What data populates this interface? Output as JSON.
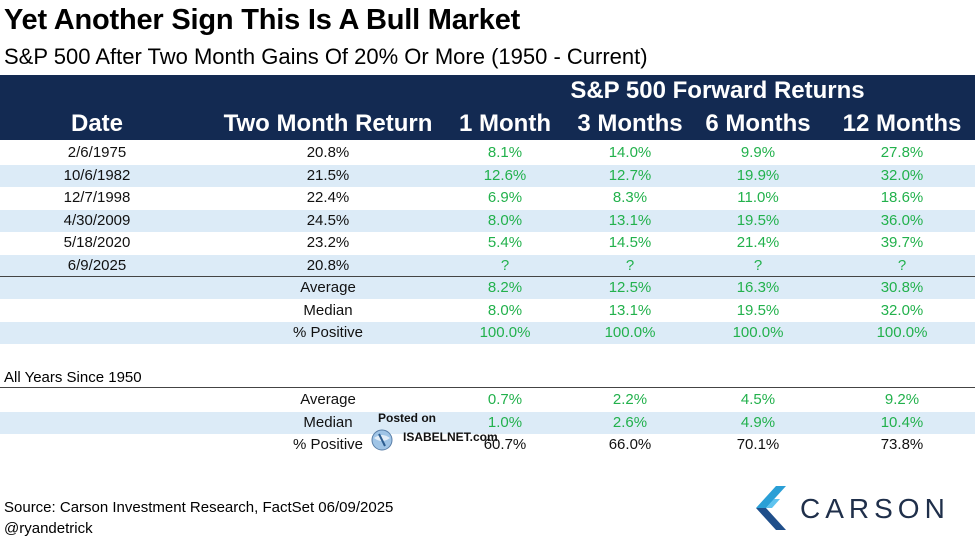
{
  "title": "Yet Another Sign This Is A Bull Market",
  "subtitle": "S&P 500 After Two Month Gains Of 20% Or More (1950 - Current)",
  "chart_data": {
    "type": "table",
    "group_header": "S&P 500 Forward Returns",
    "columns": [
      "Date",
      "Two Month Return",
      "1 Month",
      "3 Months",
      "6 Months",
      "12 Months"
    ],
    "rows": [
      [
        "2/6/1975",
        "20.8%",
        "8.1%",
        "14.0%",
        "9.9%",
        "27.8%"
      ],
      [
        "10/6/1982",
        "21.5%",
        "12.6%",
        "12.7%",
        "19.9%",
        "32.0%"
      ],
      [
        "12/7/1998",
        "22.4%",
        "6.9%",
        "8.3%",
        "11.0%",
        "18.6%"
      ],
      [
        "4/30/2009",
        "24.5%",
        "8.0%",
        "13.1%",
        "19.5%",
        "36.0%"
      ],
      [
        "5/18/2020",
        "23.2%",
        "5.4%",
        "14.5%",
        "21.4%",
        "39.7%"
      ],
      [
        "6/9/2025",
        "20.8%",
        "?",
        "?",
        "?",
        "?"
      ]
    ],
    "summary": [
      [
        "Average",
        "8.2%",
        "12.5%",
        "16.3%",
        "30.8%"
      ],
      [
        "Median",
        "8.0%",
        "13.1%",
        "19.5%",
        "32.0%"
      ],
      [
        "% Positive",
        "100.0%",
        "100.0%",
        "100.0%",
        "100.0%"
      ]
    ],
    "all_years_label": "All Years Since 1950",
    "all_years": [
      [
        "Average",
        "0.7%",
        "2.2%",
        "4.5%",
        "9.2%"
      ],
      [
        "Median",
        "1.0%",
        "2.6%",
        "4.9%",
        "10.4%"
      ],
      [
        "% Positive",
        "60.7%",
        "66.0%",
        "70.1%",
        "73.8%"
      ]
    ]
  },
  "footer": {
    "source": "Source: Carson Investment Research, FactSet 06/09/2025",
    "handle": "@ryandetrick"
  },
  "logo": {
    "text": "CARSON",
    "colors": [
      "#2a9fd6",
      "#5fc3ef",
      "#1f4e8a"
    ]
  },
  "watermark": {
    "posted": "Posted on",
    "site": "ISABELNET.com"
  },
  "colors": {
    "header_bg": "#132a52",
    "band": "#dcebf7",
    "positive": "#22b14c"
  }
}
